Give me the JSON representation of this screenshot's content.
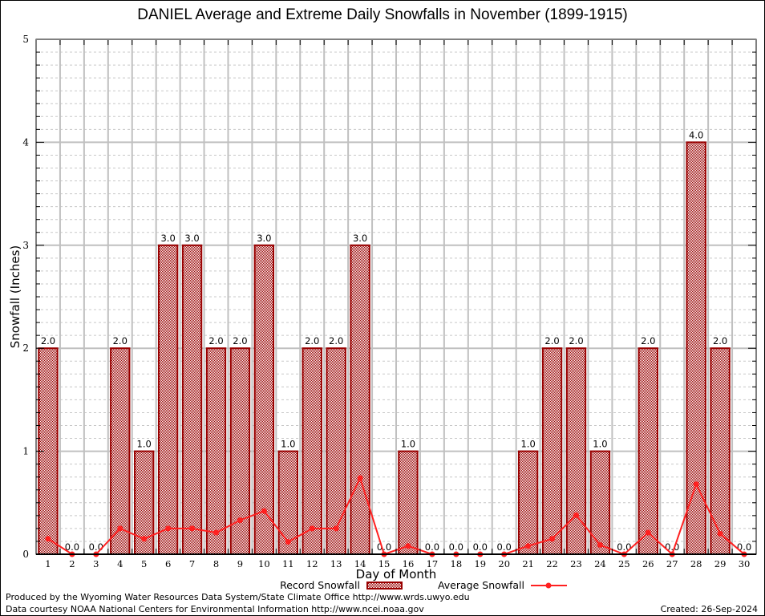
{
  "chart_data": {
    "type": "bar",
    "title": "DANIEL Average and Extreme Daily Snowfalls in November (1899-1915)",
    "xlabel": "Day of Month",
    "ylabel": "Snowfall (Inches)",
    "ylim": [
      0,
      5
    ],
    "yticks": [
      "0",
      "1",
      "2",
      "3",
      "4",
      "5"
    ],
    "grid": true,
    "legend_position": "bottom-center",
    "categories": [
      "1",
      "2",
      "3",
      "4",
      "5",
      "6",
      "7",
      "8",
      "9",
      "10",
      "11",
      "12",
      "13",
      "14",
      "15",
      "16",
      "17",
      "18",
      "19",
      "20",
      "21",
      "22",
      "23",
      "24",
      "25",
      "26",
      "27",
      "28",
      "29",
      "30"
    ],
    "series": [
      {
        "name": "Record Snowfall",
        "type": "bar",
        "color": "#990000",
        "values": [
          2.0,
          0.0,
          0.0,
          2.0,
          1.0,
          3.0,
          3.0,
          2.0,
          2.0,
          3.0,
          1.0,
          2.0,
          2.0,
          3.0,
          0.0,
          1.0,
          0.0,
          0.0,
          0.0,
          0.0,
          1.0,
          2.0,
          2.0,
          1.0,
          0.0,
          2.0,
          0.0,
          4.0,
          2.0,
          0.0
        ],
        "labels": [
          "2.0",
          "0.0",
          "0.0",
          "2.0",
          "1.0",
          "3.0",
          "3.0",
          "2.0",
          "2.0",
          "3.0",
          "1.0",
          "2.0",
          "2.0",
          "3.0",
          "0.0",
          "1.0",
          "0.0",
          "0.0",
          "0.0",
          "0.0",
          "1.0",
          "2.0",
          "2.0",
          "1.0",
          "0.0",
          "2.0",
          "0.0",
          "4.0",
          "2.0",
          "0.0"
        ]
      },
      {
        "name": "Average Snowfall",
        "type": "line",
        "color": "#ff2020",
        "values": [
          0.15,
          0.0,
          0.0,
          0.25,
          0.15,
          0.25,
          0.25,
          0.21,
          0.33,
          0.42,
          0.12,
          0.25,
          0.25,
          0.74,
          0.0,
          0.08,
          0.0,
          0.0,
          0.0,
          0.0,
          0.08,
          0.15,
          0.38,
          0.09,
          0.0,
          0.21,
          0.0,
          0.68,
          0.2,
          0.0
        ]
      }
    ]
  },
  "footer": {
    "produced_by": "Produced by the Wyoming Water Resources Data System/State Climate Office http://www.wrds.uwyo.edu",
    "data_courtesy": "Data courtesy NOAA National Centers for Environmental Information http://www.ncei.noaa.gov",
    "created": "Created: 26-Sep-2024"
  }
}
